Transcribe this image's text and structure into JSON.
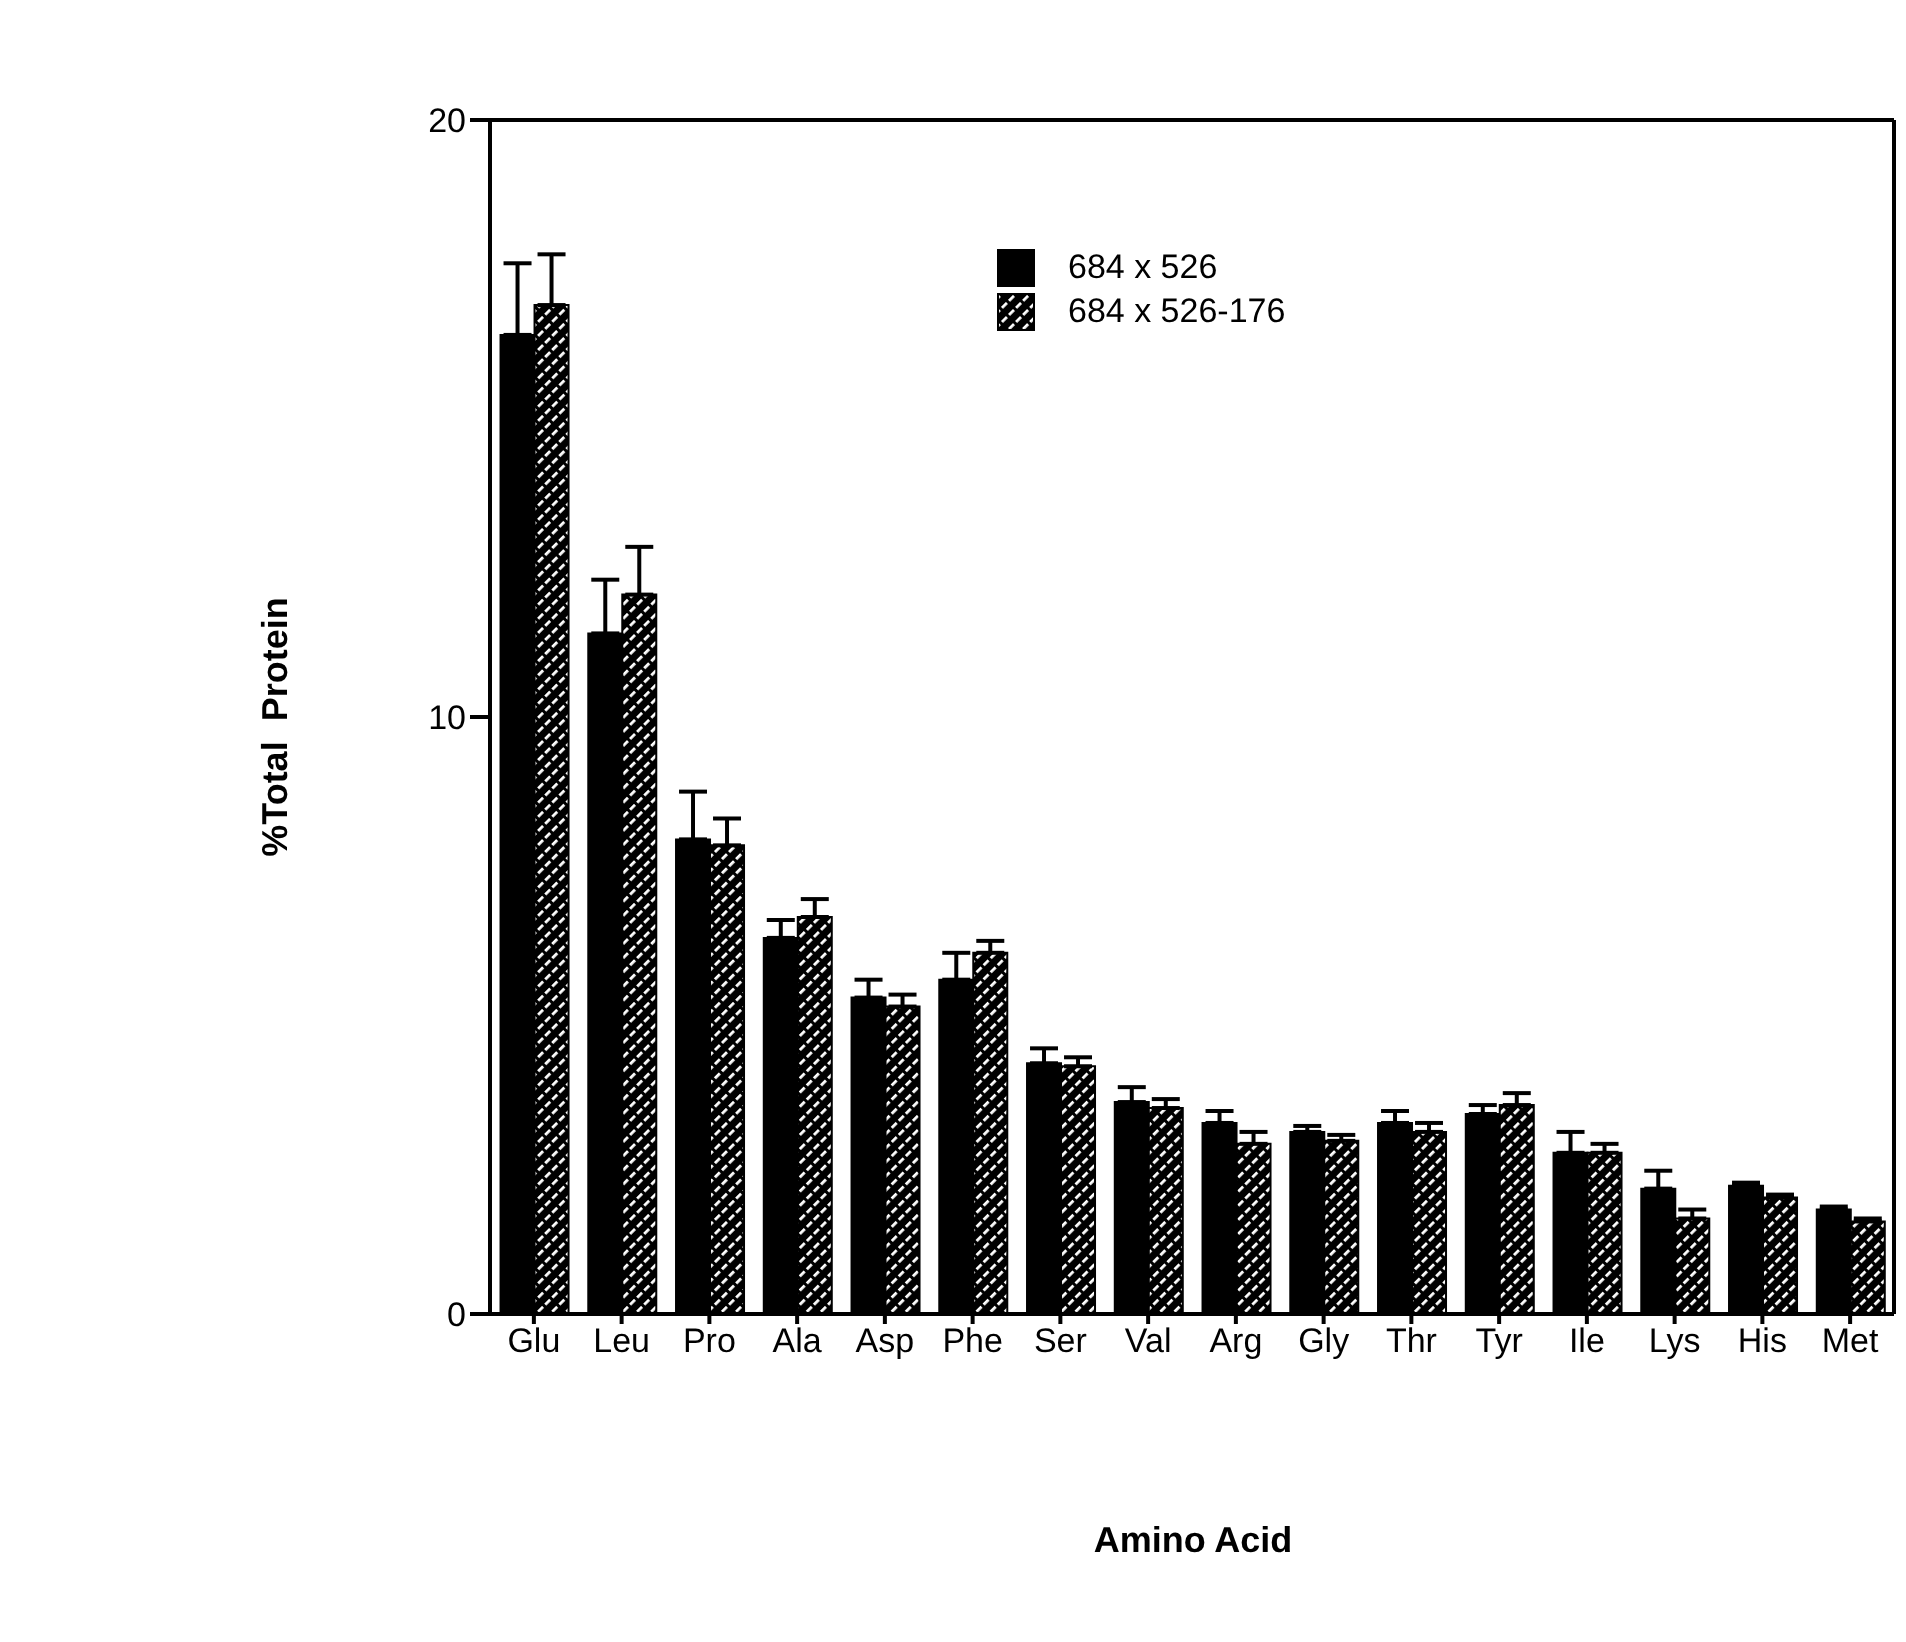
{
  "chart_data": {
    "type": "bar",
    "xlabel": "Amino Acid",
    "ylabel": "%Total  Protein",
    "categories": [
      "Glu",
      "Leu",
      "Pro",
      "Ala",
      "Asp",
      "Phe",
      "Ser",
      "Val",
      "Arg",
      "Gly",
      "Thr",
      "Tyr",
      "Ile",
      "Lys",
      "His",
      "Met"
    ],
    "series": [
      {
        "name": "684 x 526",
        "color": "#000000",
        "values": [
          16.4,
          11.4,
          7.95,
          6.3,
          5.3,
          5.6,
          4.2,
          3.55,
          3.2,
          3.05,
          3.2,
          3.35,
          2.7,
          2.1,
          2.15,
          1.75
        ],
        "errors": [
          [
            16.4,
            17.6
          ],
          [
            11.4,
            12.3
          ],
          [
            7.95,
            8.75
          ],
          [
            6.3,
            6.6
          ],
          [
            5.3,
            5.6
          ],
          [
            5.6,
            6.05
          ],
          [
            4.2,
            4.45
          ],
          [
            3.55,
            3.8
          ],
          [
            3.2,
            3.4
          ],
          [
            3.05,
            3.15
          ],
          [
            3.2,
            3.4
          ],
          [
            3.35,
            3.5
          ],
          [
            2.7,
            3.05
          ],
          [
            2.1,
            2.4
          ],
          [
            2.15,
            2.2
          ],
          [
            1.75,
            1.8
          ]
        ]
      },
      {
        "name": "684 x 526-176",
        "color": "#000000",
        "values": [
          16.9,
          12.05,
          7.85,
          6.65,
          5.15,
          6.05,
          4.15,
          3.45,
          2.85,
          2.9,
          3.05,
          3.5,
          2.7,
          1.6,
          1.95,
          1.55
        ],
        "errors": [
          [
            16.9,
            17.75
          ],
          [
            12.05,
            12.85
          ],
          [
            7.85,
            8.3
          ],
          [
            6.65,
            6.95
          ],
          [
            5.15,
            5.35
          ],
          [
            6.05,
            6.25
          ],
          [
            4.15,
            4.3
          ],
          [
            3.45,
            3.6
          ],
          [
            2.85,
            3.05
          ],
          [
            2.9,
            3.0
          ],
          [
            3.05,
            3.2
          ],
          [
            3.5,
            3.7
          ],
          [
            2.7,
            2.85
          ],
          [
            1.6,
            1.75
          ],
          [
            1.95,
            2.0
          ],
          [
            1.55,
            1.6
          ]
        ]
      }
    ],
    "ylim": [
      0,
      20
    ],
    "yticks": [
      0,
      10,
      20
    ],
    "grid": false,
    "legend": "top right"
  }
}
